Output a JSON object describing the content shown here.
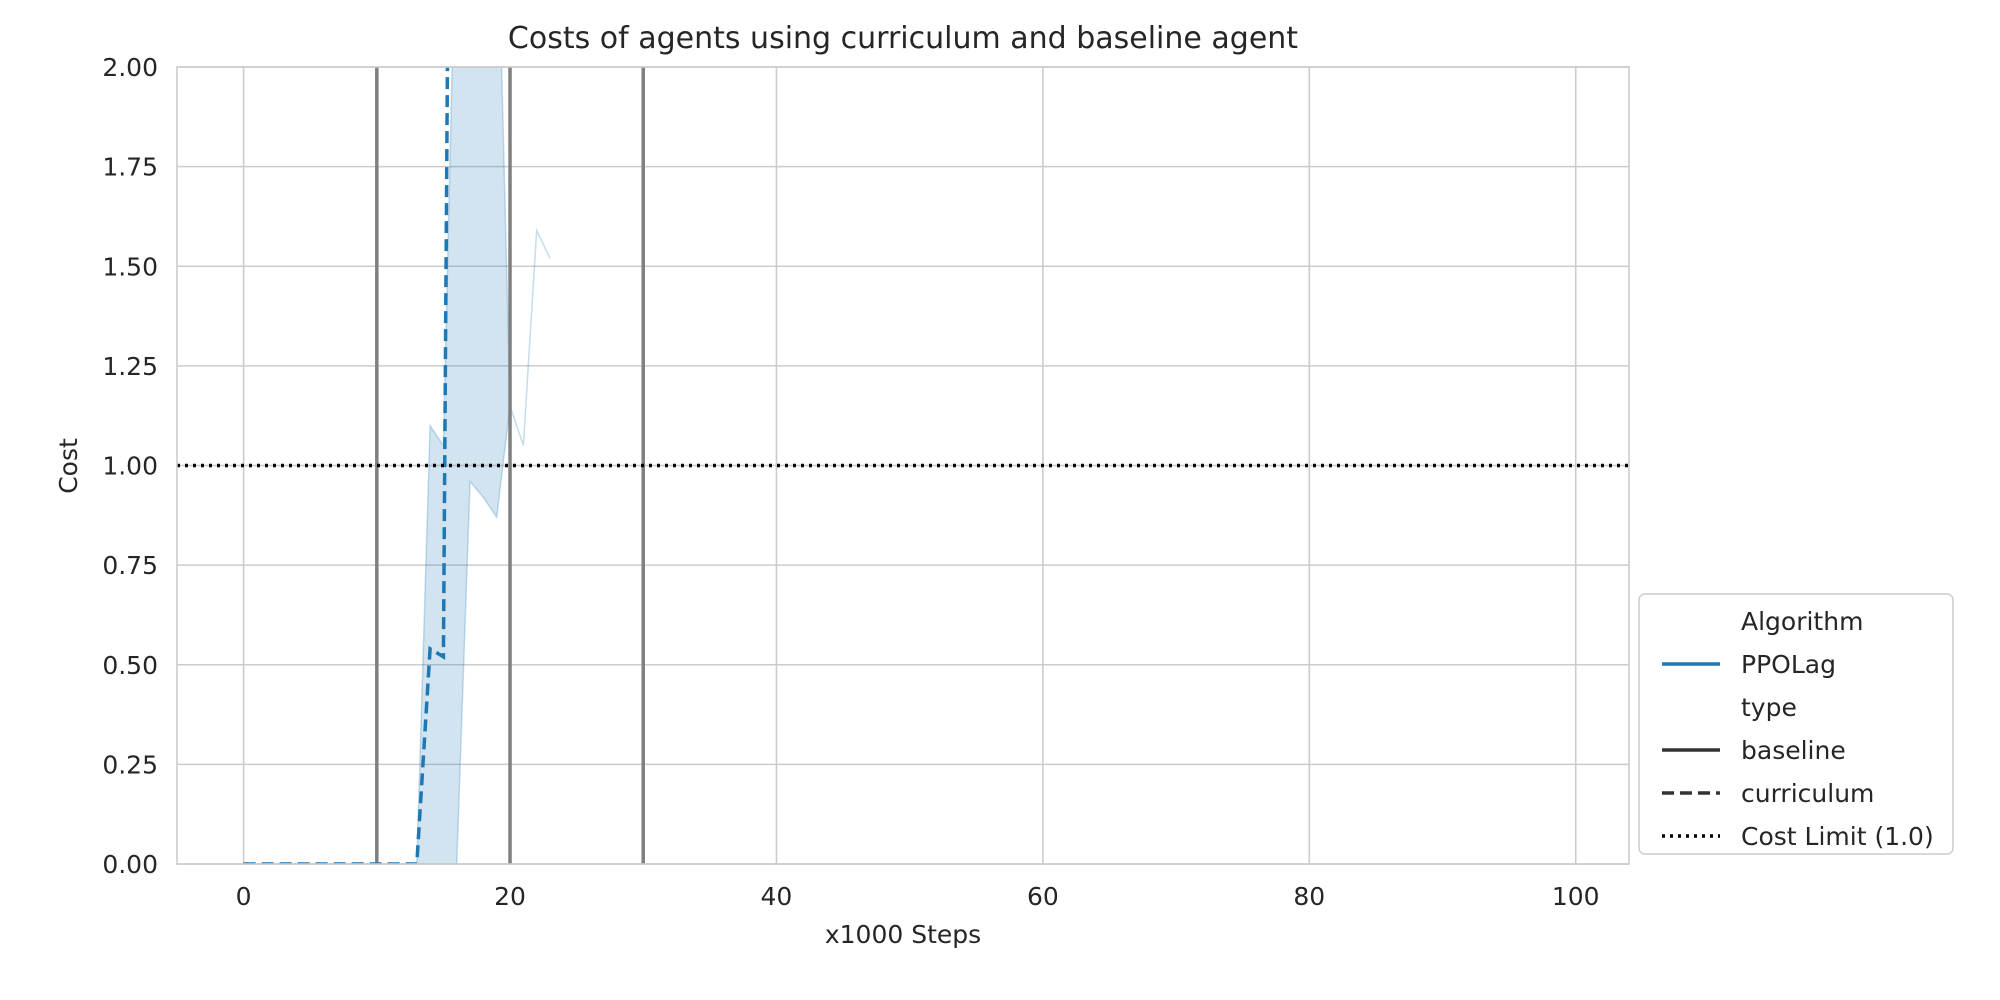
{
  "chart_data": {
    "type": "line",
    "title": "Costs of agents using curriculum and baseline agent",
    "xlabel": "x1000 Steps",
    "ylabel": "Cost",
    "xlim": [
      -5,
      104
    ],
    "ylim": [
      0,
      2
    ],
    "x_ticks": [
      0,
      20,
      40,
      60,
      80,
      100
    ],
    "y_ticks": [
      "0.00",
      "0.25",
      "0.50",
      "0.75",
      "1.00",
      "1.25",
      "1.50",
      "1.75",
      "2.00"
    ],
    "grid": true,
    "legend_position": "lower-right outside",
    "colors": {
      "ppolag": "#1f77b4",
      "band": "#1f77b4",
      "vline": "#808080",
      "cost_limit": "#000000",
      "grid": "#cccccc",
      "legend_style": "#333333"
    },
    "vertical_lines_x": [
      10,
      20,
      30
    ],
    "cost_limit": 1.0,
    "series": [
      {
        "name": "PPOLag",
        "type_label": "curriculum",
        "style": "dashed",
        "x": [
          0,
          1,
          2,
          3,
          4,
          5,
          6,
          7,
          8,
          9,
          10,
          11,
          12,
          13,
          14,
          15,
          15.3,
          16
        ],
        "y": [
          0,
          0,
          0,
          0,
          0,
          0,
          0,
          0,
          0,
          0,
          0,
          0,
          0,
          0,
          0.54,
          0.52,
          2.0,
          2.5
        ],
        "band_upper": [
          0,
          0,
          0,
          0,
          0,
          0,
          0,
          0,
          0,
          0,
          0,
          0,
          0,
          0,
          1.1,
          1.05,
          2.5,
          2.5,
          2.5,
          2.5,
          1.15,
          1.05,
          1.59,
          1.52
        ],
        "band_lower": [
          0,
          0,
          0,
          0,
          0,
          0,
          0,
          0,
          0,
          0,
          0,
          0,
          0,
          0,
          0,
          0,
          0,
          0.96,
          0.92,
          0.87,
          1.15,
          1.05,
          1.59,
          1.52
        ],
        "band_x": [
          0,
          1,
          2,
          3,
          4,
          5,
          6,
          7,
          8,
          9,
          10,
          11,
          12,
          13,
          14,
          15,
          16,
          17,
          18,
          19,
          20,
          21,
          22,
          23
        ]
      }
    ],
    "legend": [
      {
        "label": "Algorithm",
        "kind": "header"
      },
      {
        "label": "PPOLag",
        "kind": "solid-blue"
      },
      {
        "label": "type",
        "kind": "header"
      },
      {
        "label": "baseline",
        "kind": "solid-dark"
      },
      {
        "label": "curriculum",
        "kind": "dashed-dark"
      },
      {
        "label": "Cost Limit (1.0)",
        "kind": "dotted-black"
      }
    ]
  }
}
